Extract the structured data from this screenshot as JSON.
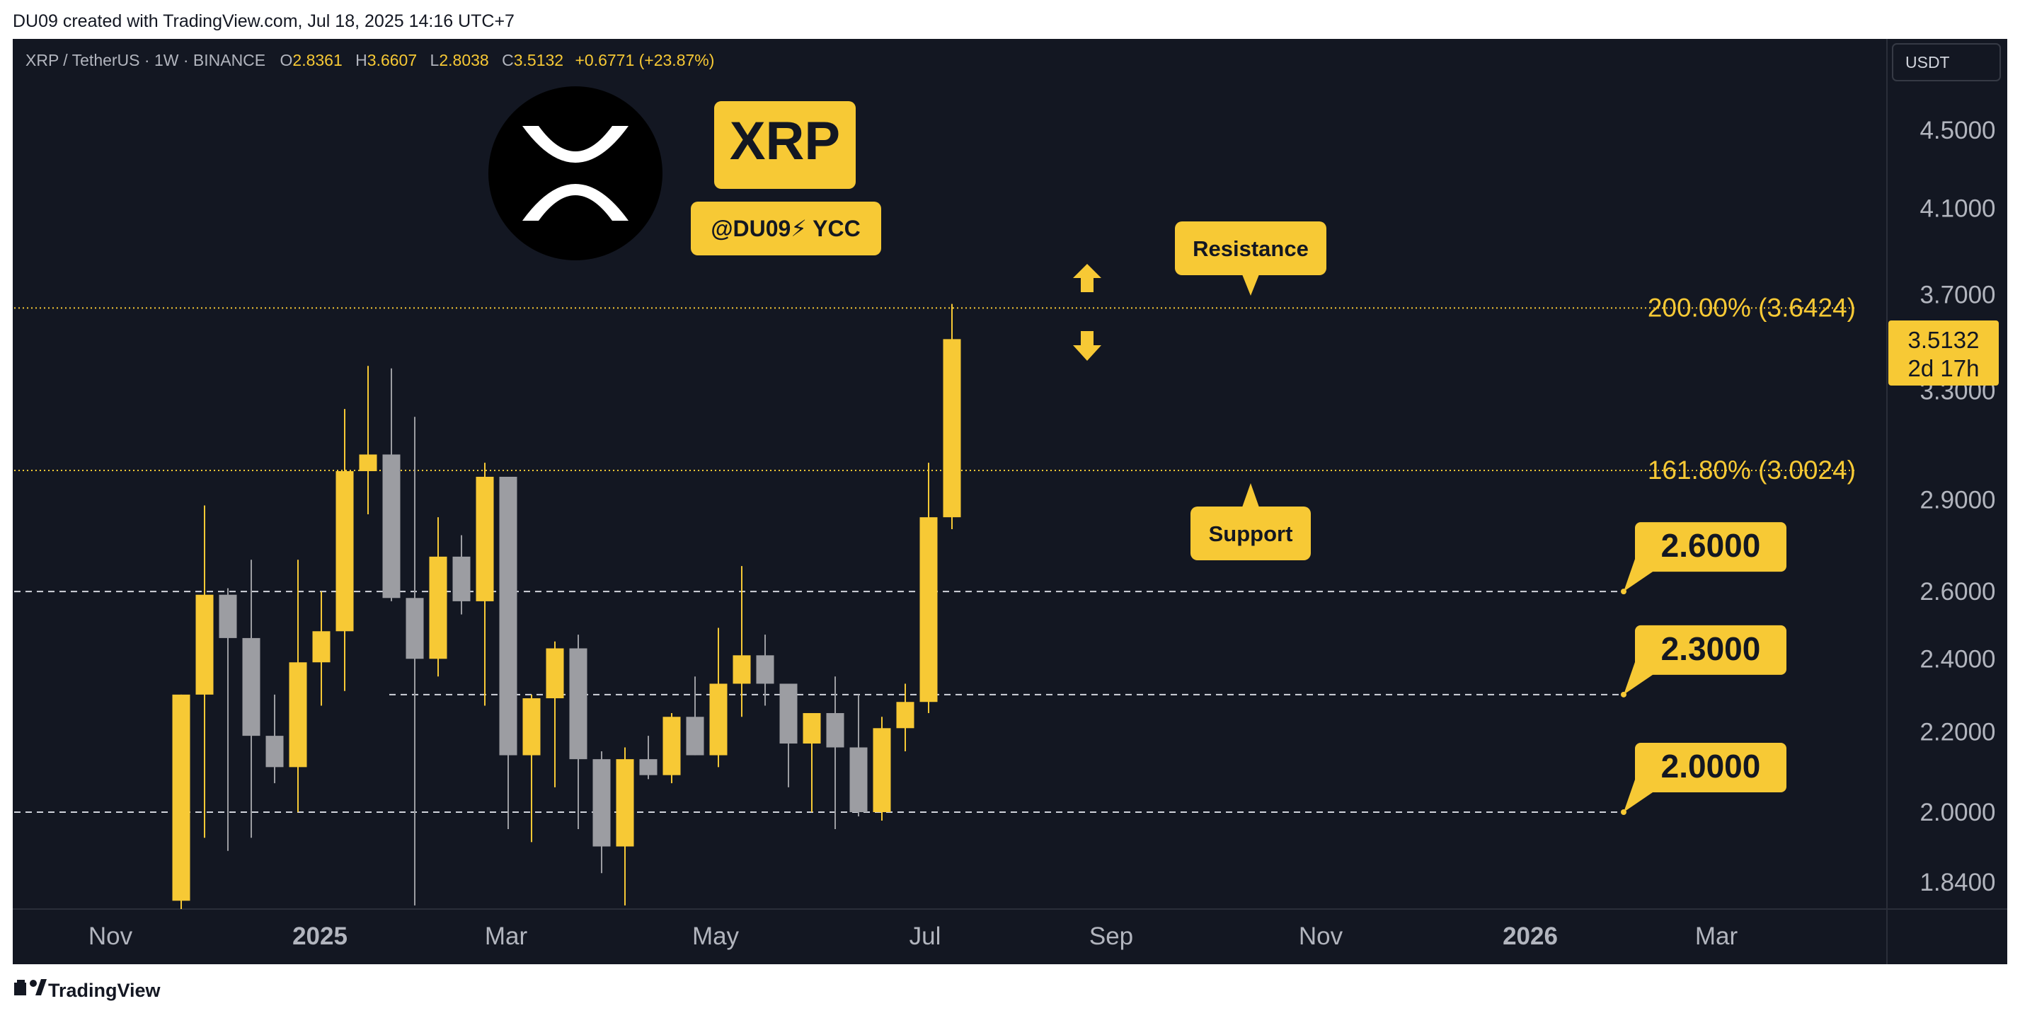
{
  "header": {
    "created_by": "DU09 created with TradingView.com, Jul 18, 2025 14:16 UTC+7"
  },
  "symbol_bar": {
    "symbol": "XRP / TetherUS · 1W · BINANCE",
    "open_label": "O",
    "open": "2.8361",
    "high_label": "H",
    "high": "3.6607",
    "low_label": "L",
    "low": "2.8038",
    "close_label": "C",
    "close": "3.5132",
    "change": "+0.6771 (+23.87%)"
  },
  "currency_button": "USDT",
  "overlay": {
    "ticker_badge": "XRP",
    "handle_badge": "@DU09⚡ YCC",
    "resistance_label": "Resistance",
    "support_label": "Support"
  },
  "price_badge": {
    "price": "3.5132",
    "countdown": "2d 17h"
  },
  "footer": {
    "brand": "TradingView"
  },
  "colors": {
    "background": "#131722",
    "bull": "#f7c935",
    "bear": "#9c9da2",
    "text": "#b2b5be",
    "accent_yellow": "#f7c935"
  },
  "chart_data": {
    "type": "candlestick",
    "x_tick_labels": [
      "Nov",
      "2025",
      "Mar",
      "May",
      "Jul",
      "Sep",
      "Nov",
      "2026",
      "Mar"
    ],
    "y_tick_labels": [
      "4.5000",
      "4.1000",
      "3.7000",
      "3.3000",
      "2.9000",
      "2.6000",
      "2.4000",
      "2.2000",
      "2.0000",
      "1.8400"
    ],
    "y_scale": "log",
    "ylim": [
      1.78,
      5.2
    ],
    "candles": [
      {
        "o": 1.8,
        "h": 2.3,
        "l": 1.78,
        "c": 2.3
      },
      {
        "o": 2.3,
        "h": 2.88,
        "l": 1.94,
        "c": 2.59
      },
      {
        "o": 2.59,
        "h": 2.61,
        "l": 1.91,
        "c": 2.46
      },
      {
        "o": 2.46,
        "h": 2.7,
        "l": 1.94,
        "c": 2.19
      },
      {
        "o": 2.19,
        "h": 2.3,
        "l": 2.07,
        "c": 2.11
      },
      {
        "o": 2.11,
        "h": 2.7,
        "l": 2.0,
        "c": 2.39
      },
      {
        "o": 2.39,
        "h": 2.6,
        "l": 2.27,
        "c": 2.48
      },
      {
        "o": 2.48,
        "h": 3.23,
        "l": 2.31,
        "c": 3.0
      },
      {
        "o": 3.0,
        "h": 3.4,
        "l": 2.85,
        "c": 3.06
      },
      {
        "o": 3.06,
        "h": 3.39,
        "l": 2.57,
        "c": 2.58
      },
      {
        "o": 2.58,
        "h": 3.2,
        "l": 1.79,
        "c": 2.4
      },
      {
        "o": 2.4,
        "h": 2.84,
        "l": 2.35,
        "c": 2.71
      },
      {
        "o": 2.71,
        "h": 2.78,
        "l": 2.53,
        "c": 2.57
      },
      {
        "o": 2.57,
        "h": 3.03,
        "l": 2.27,
        "c": 2.98
      },
      {
        "o": 2.98,
        "h": 2.98,
        "l": 1.96,
        "c": 2.14
      },
      {
        "o": 2.14,
        "h": 2.3,
        "l": 1.93,
        "c": 2.29
      },
      {
        "o": 2.29,
        "h": 2.45,
        "l": 2.06,
        "c": 2.43
      },
      {
        "o": 2.43,
        "h": 2.47,
        "l": 1.96,
        "c": 2.13
      },
      {
        "o": 2.13,
        "h": 2.15,
        "l": 1.86,
        "c": 1.92
      },
      {
        "o": 1.92,
        "h": 2.16,
        "l": 1.79,
        "c": 2.13
      },
      {
        "o": 2.13,
        "h": 2.19,
        "l": 2.08,
        "c": 2.09
      },
      {
        "o": 2.09,
        "h": 2.25,
        "l": 2.07,
        "c": 2.24
      },
      {
        "o": 2.24,
        "h": 2.35,
        "l": 2.14,
        "c": 2.14
      },
      {
        "o": 2.14,
        "h": 2.49,
        "l": 2.11,
        "c": 2.33
      },
      {
        "o": 2.33,
        "h": 2.68,
        "l": 2.24,
        "c": 2.41
      },
      {
        "o": 2.41,
        "h": 2.47,
        "l": 2.27,
        "c": 2.33
      },
      {
        "o": 2.33,
        "h": 2.33,
        "l": 2.06,
        "c": 2.17
      },
      {
        "o": 2.17,
        "h": 2.25,
        "l": 2.0,
        "c": 2.25
      },
      {
        "o": 2.25,
        "h": 2.35,
        "l": 1.96,
        "c": 2.16
      },
      {
        "o": 2.16,
        "h": 2.3,
        "l": 1.99,
        "c": 2.0
      },
      {
        "o": 2.0,
        "h": 2.24,
        "l": 1.98,
        "c": 2.21
      },
      {
        "o": 2.21,
        "h": 2.33,
        "l": 2.15,
        "c": 2.28
      },
      {
        "o": 2.28,
        "h": 3.03,
        "l": 2.25,
        "c": 2.84
      },
      {
        "o": 2.84,
        "h": 3.66,
        "l": 2.8,
        "c": 3.51
      }
    ],
    "levels": [
      {
        "price": 3.6424,
        "label": "200.00% (3.6424)",
        "style": "dotted"
      },
      {
        "price": 3.0024,
        "label": "161.80% (3.0024)",
        "style": "dotted"
      },
      {
        "price": 2.6,
        "label": "2.6000",
        "style": "dashed"
      },
      {
        "price": 2.3,
        "label": "2.3000",
        "style": "dashed"
      },
      {
        "price": 2.0,
        "label": "2.0000",
        "style": "dashed"
      }
    ],
    "last_price": 3.5132
  }
}
